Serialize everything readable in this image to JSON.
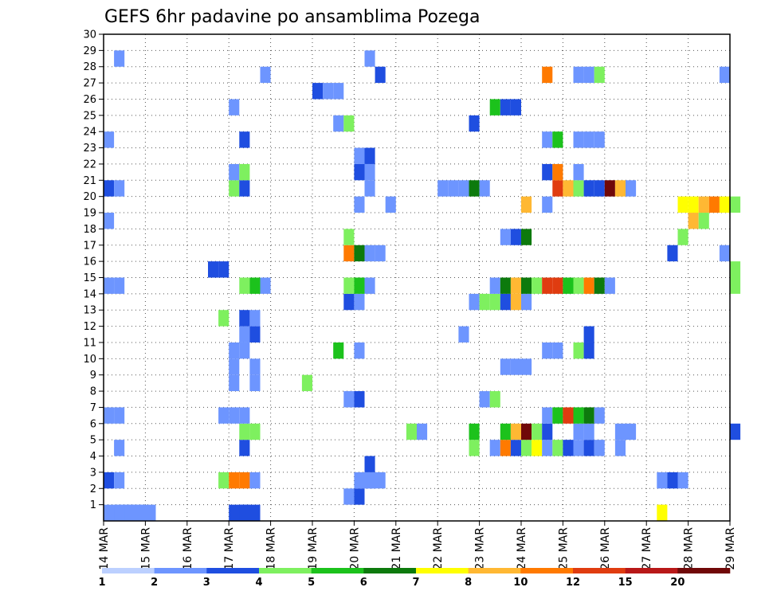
{
  "chart_data": {
    "type": "heatmap",
    "title": "GEFS 6hr padavine po ansamblima Pozega",
    "xlabel": "",
    "ylabel": "",
    "ylim": [
      0,
      30
    ],
    "x_ticks": [
      "14 MAR",
      "15 MAR",
      "16 MAR",
      "17 MAR",
      "18 MAR",
      "19 MAR",
      "20 MAR",
      "21 MAR",
      "22 MAR",
      "23 MAR",
      "24 MAR",
      "25 MAR",
      "26 MAR",
      "27 MAR",
      "28 MAR",
      "29 MAR"
    ],
    "y_ticks": [
      1,
      2,
      3,
      4,
      5,
      6,
      7,
      8,
      9,
      10,
      11,
      12,
      13,
      14,
      15,
      16,
      17,
      18,
      19,
      20,
      21,
      22,
      23,
      24,
      25,
      26,
      27,
      28,
      29,
      30
    ],
    "x_start_day": 14,
    "x_step_hours": 6,
    "grid": "dotted",
    "colorbar": {
      "levels": [
        "1",
        "2",
        "3",
        "4",
        "5",
        "6",
        "7",
        "8",
        "10",
        "12",
        "15",
        "20"
      ],
      "colors": [
        "#bcd0ff",
        "#6d95ff",
        "#1f4ee0",
        "#7ef05f",
        "#1cc21c",
        "#0d7a0d",
        "#ffff00",
        "#ffb833",
        "#ff7a00",
        "#e03c10",
        "#b81818",
        "#700808"
      ]
    },
    "cells": [
      [
        14.0,
        0,
        1,
        3
      ],
      [
        14.25,
        0,
        1,
        3
      ],
      [
        14.5,
        0,
        1,
        3
      ],
      [
        17.0,
        0,
        2,
        2
      ],
      [
        17.25,
        0,
        2,
        2
      ],
      [
        27.25,
        0,
        6,
        1
      ],
      [
        19.75,
        1,
        1,
        1
      ],
      [
        20.0,
        1,
        2,
        1
      ],
      [
        14.0,
        2,
        2,
        1
      ],
      [
        14.25,
        2,
        1,
        1
      ],
      [
        16.75,
        2,
        3,
        1
      ],
      [
        17.0,
        2,
        8,
        1
      ],
      [
        17.25,
        2,
        8,
        1
      ],
      [
        17.5,
        2,
        1,
        1
      ],
      [
        20.0,
        2,
        1,
        2
      ],
      [
        20.25,
        2,
        1,
        2
      ],
      [
        27.25,
        2,
        1,
        1
      ],
      [
        27.5,
        2,
        2,
        1
      ],
      [
        27.75,
        2,
        1,
        1
      ],
      [
        20.25,
        3,
        2,
        1
      ],
      [
        14.25,
        4,
        1,
        1
      ],
      [
        17.25,
        4,
        2,
        1
      ],
      [
        22.75,
        4,
        3,
        1
      ],
      [
        23.25,
        4,
        1,
        1
      ],
      [
        23.5,
        4,
        8,
        1
      ],
      [
        23.75,
        4,
        2,
        1
      ],
      [
        24.0,
        4,
        3,
        1
      ],
      [
        24.25,
        4,
        6,
        1
      ],
      [
        24.5,
        4,
        1,
        1
      ],
      [
        24.75,
        4,
        3,
        1
      ],
      [
        25.0,
        4,
        2,
        1
      ],
      [
        25.25,
        4,
        1,
        1
      ],
      [
        25.5,
        4,
        2,
        1
      ],
      [
        25.75,
        4,
        1,
        1
      ],
      [
        26.25,
        4,
        1,
        1
      ],
      [
        17.25,
        5,
        3,
        1
      ],
      [
        17.5,
        5,
        3,
        1
      ],
      [
        21.25,
        5,
        3,
        1
      ],
      [
        21.5,
        5,
        1,
        1
      ],
      [
        22.75,
        5,
        4,
        1
      ],
      [
        23.5,
        5,
        4,
        1
      ],
      [
        23.75,
        5,
        7,
        1
      ],
      [
        24.0,
        5,
        11,
        1
      ],
      [
        24.25,
        5,
        3,
        1
      ],
      [
        24.5,
        5,
        2,
        1
      ],
      [
        25.25,
        5,
        1,
        1
      ],
      [
        25.5,
        5,
        1,
        1
      ],
      [
        26.25,
        5,
        1,
        1
      ],
      [
        26.5,
        5,
        1,
        1
      ],
      [
        29.0,
        5,
        2,
        1
      ],
      [
        14.0,
        6,
        1,
        1
      ],
      [
        14.25,
        6,
        1,
        1
      ],
      [
        16.75,
        6,
        1,
        1
      ],
      [
        17.0,
        6,
        1,
        1
      ],
      [
        17.25,
        6,
        1,
        1
      ],
      [
        24.5,
        6,
        1,
        1
      ],
      [
        24.75,
        6,
        4,
        1
      ],
      [
        25.0,
        6,
        9,
        1
      ],
      [
        25.25,
        6,
        4,
        1
      ],
      [
        25.5,
        6,
        5,
        1
      ],
      [
        25.75,
        6,
        1,
        1
      ],
      [
        19.75,
        7,
        1,
        1
      ],
      [
        20.0,
        7,
        2,
        1
      ],
      [
        23.0,
        7,
        1,
        1
      ],
      [
        23.25,
        7,
        3,
        1
      ],
      [
        17.0,
        8,
        1,
        1
      ],
      [
        17.5,
        8,
        1,
        1
      ],
      [
        18.75,
        8,
        3,
        1
      ],
      [
        17.0,
        9,
        1,
        1
      ],
      [
        17.5,
        9,
        1,
        1
      ],
      [
        23.5,
        9,
        1,
        1
      ],
      [
        23.75,
        9,
        1,
        1
      ],
      [
        24.0,
        9,
        1,
        1
      ],
      [
        17.0,
        10,
        1,
        1
      ],
      [
        17.25,
        10,
        1,
        1
      ],
      [
        19.5,
        10,
        4,
        1
      ],
      [
        20.0,
        10,
        1,
        1
      ],
      [
        24.5,
        10,
        1,
        1
      ],
      [
        24.75,
        10,
        1,
        1
      ],
      [
        25.25,
        10,
        3,
        1
      ],
      [
        25.5,
        10,
        2,
        1
      ],
      [
        17.25,
        11,
        1,
        1
      ],
      [
        17.5,
        11,
        2,
        1
      ],
      [
        22.5,
        11,
        1,
        1
      ],
      [
        25.5,
        11,
        2,
        1
      ],
      [
        16.75,
        12,
        3,
        1
      ],
      [
        17.25,
        12,
        2,
        1
      ],
      [
        17.5,
        12,
        1,
        1
      ],
      [
        19.75,
        13,
        2,
        1
      ],
      [
        20.0,
        13,
        1,
        1
      ],
      [
        22.75,
        13,
        1,
        1
      ],
      [
        23.0,
        13,
        3,
        1
      ],
      [
        23.25,
        13,
        3,
        1
      ],
      [
        23.5,
        13,
        2,
        1
      ],
      [
        23.75,
        13,
        7,
        1
      ],
      [
        24.0,
        13,
        1,
        1
      ],
      [
        14.0,
        14,
        1,
        1
      ],
      [
        14.25,
        14,
        1,
        1
      ],
      [
        17.25,
        14,
        3,
        1
      ],
      [
        17.5,
        14,
        4,
        1
      ],
      [
        17.75,
        14,
        1,
        1
      ],
      [
        19.75,
        14,
        3,
        1
      ],
      [
        20.0,
        14,
        4,
        1
      ],
      [
        20.25,
        14,
        1,
        1
      ],
      [
        23.25,
        14,
        1,
        1
      ],
      [
        23.5,
        14,
        5,
        1
      ],
      [
        23.75,
        14,
        7,
        1
      ],
      [
        24.0,
        14,
        5,
        1
      ],
      [
        24.25,
        14,
        3,
        1
      ],
      [
        24.5,
        14,
        9,
        1
      ],
      [
        24.75,
        14,
        9,
        1
      ],
      [
        25.0,
        14,
        4,
        1
      ],
      [
        25.25,
        14,
        3,
        1
      ],
      [
        25.5,
        14,
        8,
        1
      ],
      [
        25.75,
        14,
        5,
        1
      ],
      [
        26.0,
        14,
        1,
        1
      ],
      [
        29.0,
        14,
        3,
        1
      ],
      [
        16.5,
        15,
        2,
        1
      ],
      [
        16.75,
        15,
        2,
        1
      ],
      [
        29.0,
        15,
        3,
        1
      ],
      [
        19.75,
        16,
        8,
        1
      ],
      [
        20.0,
        16,
        5,
        1
      ],
      [
        20.25,
        16,
        1,
        1
      ],
      [
        20.5,
        16,
        1,
        1
      ],
      [
        27.5,
        16,
        2,
        1
      ],
      [
        28.75,
        16,
        1,
        1
      ],
      [
        19.75,
        17,
        3,
        1
      ],
      [
        23.5,
        17,
        1,
        1
      ],
      [
        23.75,
        17,
        2,
        1
      ],
      [
        24.0,
        17,
        5,
        1
      ],
      [
        27.75,
        17,
        3,
        1
      ],
      [
        14.0,
        18,
        1,
        1
      ],
      [
        28.0,
        18,
        7,
        1
      ],
      [
        28.25,
        18,
        3,
        1
      ],
      [
        20.0,
        19,
        1,
        1
      ],
      [
        20.75,
        19,
        1,
        1
      ],
      [
        24.0,
        19,
        7,
        1
      ],
      [
        24.5,
        19,
        1,
        1
      ],
      [
        27.75,
        19,
        6,
        1
      ],
      [
        28.0,
        19,
        6,
        1
      ],
      [
        28.25,
        19,
        7,
        1
      ],
      [
        28.5,
        19,
        8,
        1
      ],
      [
        28.75,
        19,
        6,
        1
      ],
      [
        29.0,
        19,
        3,
        1
      ],
      [
        14.0,
        20,
        2,
        1
      ],
      [
        14.25,
        20,
        1,
        1
      ],
      [
        17.0,
        20,
        3,
        1
      ],
      [
        17.25,
        20,
        2,
        1
      ],
      [
        20.25,
        20,
        1,
        1
      ],
      [
        22.0,
        20,
        1,
        1
      ],
      [
        22.25,
        20,
        1,
        1
      ],
      [
        22.5,
        20,
        1,
        1
      ],
      [
        22.75,
        20,
        5,
        1
      ],
      [
        23.0,
        20,
        1,
        1
      ],
      [
        24.75,
        20,
        9,
        1
      ],
      [
        25.0,
        20,
        7,
        1
      ],
      [
        25.25,
        20,
        3,
        1
      ],
      [
        25.5,
        20,
        2,
        1
      ],
      [
        25.75,
        20,
        2,
        1
      ],
      [
        26.0,
        20,
        11,
        1
      ],
      [
        26.25,
        20,
        7,
        1
      ],
      [
        26.5,
        20,
        1,
        1
      ],
      [
        17.0,
        21,
        1,
        1
      ],
      [
        17.25,
        21,
        3,
        1
      ],
      [
        20.0,
        21,
        2,
        1
      ],
      [
        20.25,
        21,
        1,
        1
      ],
      [
        24.5,
        21,
        2,
        1
      ],
      [
        24.75,
        21,
        8,
        1
      ],
      [
        25.25,
        21,
        1,
        1
      ],
      [
        20.0,
        22,
        1,
        1
      ],
      [
        20.25,
        22,
        2,
        1
      ],
      [
        14.0,
        23,
        1,
        1
      ],
      [
        17.25,
        23,
        2,
        1
      ],
      [
        24.5,
        23,
        1,
        1
      ],
      [
        24.75,
        23,
        4,
        1
      ],
      [
        25.25,
        23,
        1,
        1
      ],
      [
        25.5,
        23,
        1,
        1
      ],
      [
        25.75,
        23,
        1,
        1
      ],
      [
        19.5,
        24,
        1,
        1
      ],
      [
        19.75,
        24,
        3,
        1
      ],
      [
        22.75,
        24,
        2,
        1
      ],
      [
        17.0,
        25,
        1,
        1
      ],
      [
        23.25,
        25,
        4,
        1
      ],
      [
        23.5,
        25,
        2,
        1
      ],
      [
        23.75,
        25,
        2,
        1
      ],
      [
        19.0,
        26,
        2,
        1
      ],
      [
        19.25,
        26,
        1,
        1
      ],
      [
        19.5,
        26,
        1,
        1
      ],
      [
        17.75,
        27,
        1,
        1
      ],
      [
        20.5,
        27,
        2,
        1
      ],
      [
        24.5,
        27,
        8,
        1
      ],
      [
        25.25,
        27,
        1,
        1
      ],
      [
        25.5,
        27,
        1,
        1
      ],
      [
        25.75,
        27,
        3,
        1
      ],
      [
        28.75,
        27,
        1,
        1
      ],
      [
        14.25,
        28,
        1,
        1
      ],
      [
        20.25,
        28,
        1,
        1
      ]
    ]
  }
}
